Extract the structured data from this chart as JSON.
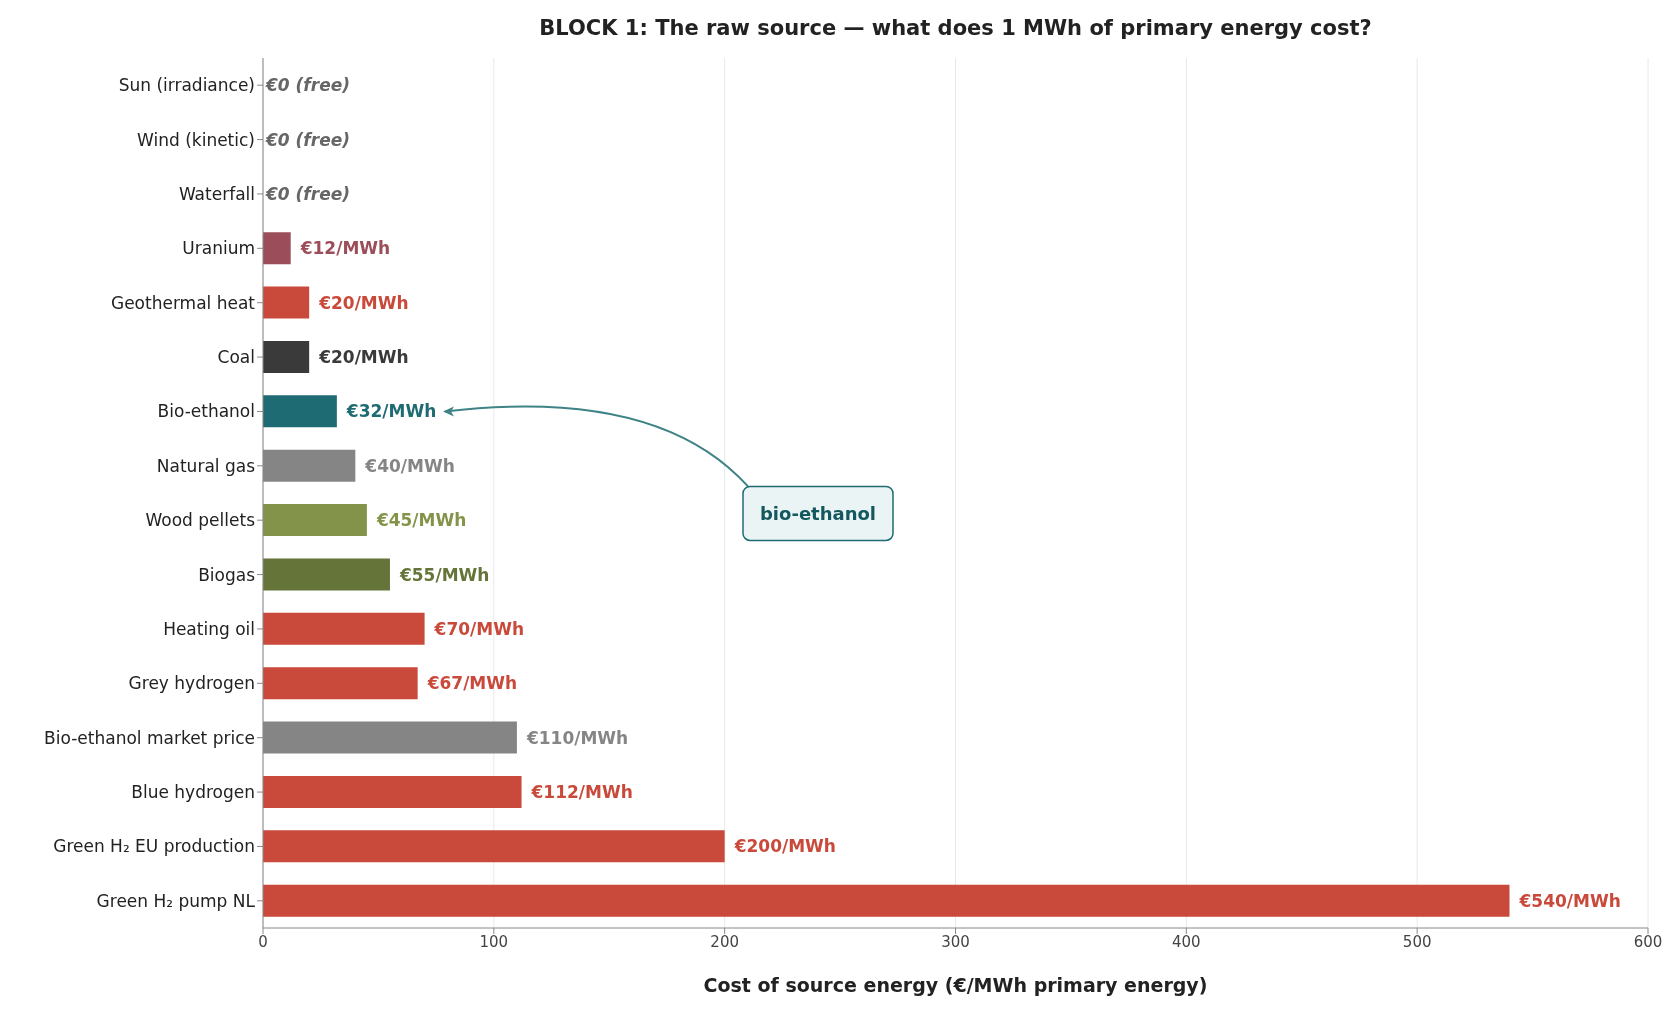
{
  "chart_data": {
    "type": "bar",
    "orientation": "horizontal",
    "title": "BLOCK 1: The raw source — what does 1 MWh of primary energy cost?",
    "xlabel": "Cost of source energy (€/MWh primary energy)",
    "categories": [
      "Sun (irradiance)",
      "Wind (kinetic)",
      "Waterfall",
      "Uranium",
      "Geothermal heat",
      "Coal",
      "Bio-ethanol",
      "Natural gas",
      "Wood pellets",
      "Biogas",
      "Heating oil",
      "Grey hydrogen",
      "Bio-ethanol market price",
      "Blue hydrogen",
      "Green H₂ EU production",
      "Green H₂ pump NL"
    ],
    "values": [
      0,
      0,
      0,
      12,
      20,
      20,
      32,
      40,
      45,
      55,
      70,
      67,
      110,
      112,
      200,
      540
    ],
    "colors": [
      "#666666",
      "#666666",
      "#666666",
      "#9b4d5a",
      "#c9493a",
      "#3a3a3a",
      "#1f6b73",
      "#858585",
      "#83944a",
      "#65753a",
      "#c9493a",
      "#c9493a",
      "#858585",
      "#c9493a",
      "#c9493a",
      "#c9493a"
    ],
    "value_labels": [
      "€0 (free)",
      "€0 (free)",
      "€0 (free)",
      "€12/MWh",
      "€20/MWh",
      "€20/MWh",
      "€32/MWh",
      "€40/MWh",
      "€45/MWh",
      "€55/MWh",
      "€70/MWh",
      "€67/MWh",
      "€110/MWh",
      "€112/MWh",
      "€200/MWh",
      "€540/MWh"
    ],
    "xlim": [
      0,
      600
    ],
    "xticks": [
      0,
      100,
      200,
      300,
      400,
      500,
      600
    ],
    "grid": "x",
    "annotations": [
      "bio-ethanol"
    ]
  }
}
